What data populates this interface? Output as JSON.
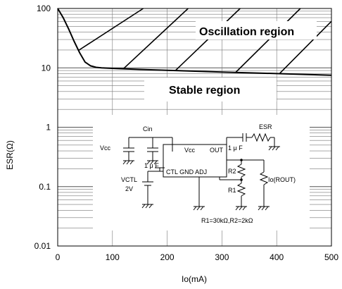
{
  "chart_data": {
    "type": "line",
    "title": "",
    "xlabel": "Io(mA)",
    "ylabel": "ESR(Ω)",
    "xlim": [
      0,
      500
    ],
    "ylim": [
      0.01,
      100
    ],
    "yscale": "log",
    "x_ticks": [
      "0",
      "100",
      "200",
      "300",
      "400",
      "500"
    ],
    "y_ticks": [
      "0.01",
      "0.1",
      "1",
      "10",
      "100"
    ],
    "grid": true,
    "series": [
      {
        "x": [
          0,
          10,
          20,
          30,
          40,
          50,
          60,
          70,
          80,
          100,
          150,
          200,
          300,
          400,
          500
        ],
        "y": [
          100,
          70,
          45,
          28,
          18,
          12.5,
          10.8,
          10.2,
          10,
          9.8,
          9.4,
          9.1,
          8.5,
          8,
          7.5
        ]
      }
    ],
    "annotations": [
      {
        "text": "Oscillation region"
      },
      {
        "text": "Stable region"
      }
    ]
  },
  "circuit": {
    "labels": {
      "vcc_left": "Vcc",
      "cin": "Cin",
      "vcc_pin": "Vcc",
      "out_pin": "OUT",
      "cap_out": "1 μ F",
      "esr": "ESR",
      "cap_ctl": "1 μ F",
      "vctl": "VCTL",
      "vctl_value": "2V",
      "ctl_pins": "CTL GND ADJ",
      "r2": "R2",
      "r1": "R1",
      "io": "Io(ROUT)",
      "resistors": "R1=30kΩ,R2=2kΩ"
    }
  }
}
